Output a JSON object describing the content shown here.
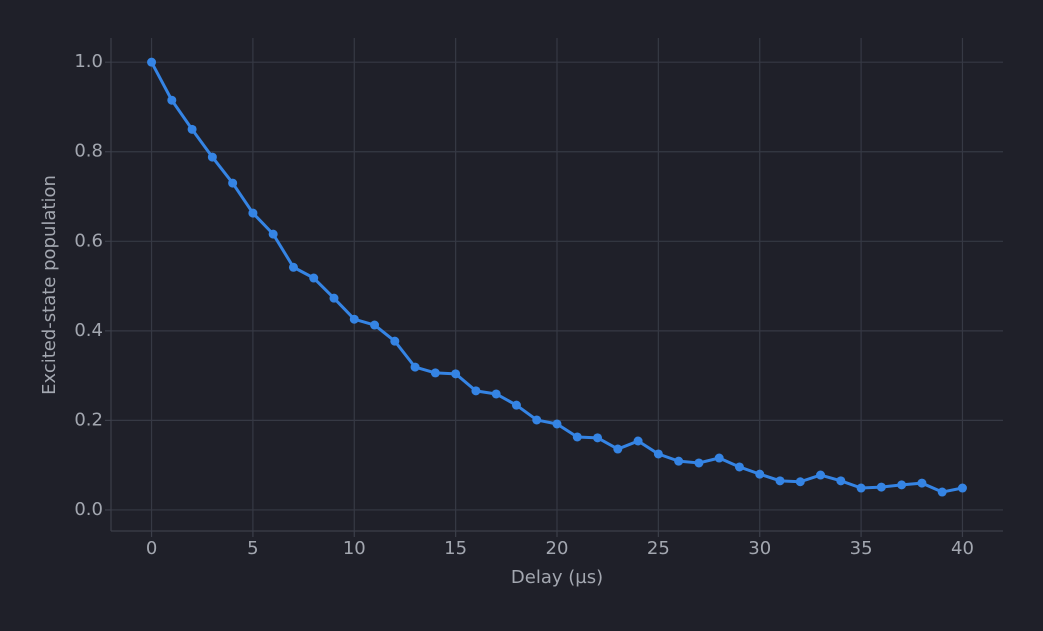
{
  "chart_data": {
    "type": "line",
    "xlabel": "Delay (µs)",
    "ylabel": "Excited-state population",
    "x": [
      0,
      1,
      2,
      3,
      4,
      5,
      6,
      7,
      8,
      9,
      10,
      11,
      12,
      13,
      14,
      15,
      16,
      17,
      18,
      19,
      20,
      21,
      22,
      23,
      24,
      25,
      26,
      27,
      28,
      29,
      30,
      31,
      32,
      33,
      34,
      35,
      36,
      37,
      38,
      39,
      40
    ],
    "values": [
      1.0,
      0.915,
      0.85,
      0.788,
      0.73,
      0.663,
      0.616,
      0.542,
      0.518,
      0.473,
      0.426,
      0.413,
      0.377,
      0.319,
      0.306,
      0.304,
      0.266,
      0.259,
      0.234,
      0.201,
      0.192,
      0.163,
      0.161,
      0.136,
      0.154,
      0.125,
      0.109,
      0.105,
      0.116,
      0.096,
      0.08,
      0.065,
      0.063,
      0.078,
      0.065,
      0.049,
      0.051,
      0.056,
      0.06,
      0.04,
      0.049
    ],
    "color": "#3584e4",
    "xlim": [
      -2,
      42
    ],
    "ylim": [
      -0.047,
      1.054
    ],
    "xticks": [
      0,
      5,
      10,
      15,
      20,
      25,
      30,
      35,
      40
    ],
    "yticks": [
      {
        "value": 0,
        "label": "0.0"
      },
      0.2,
      0.4,
      0.6,
      0.8,
      {
        "value": 1,
        "label": "1.0"
      }
    ],
    "grid": true
  }
}
